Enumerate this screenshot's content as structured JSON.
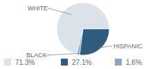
{
  "chart_data": {
    "type": "pie",
    "categories": [
      "WHITE",
      "HISPANIC",
      "BLACK"
    ],
    "values": [
      71.3,
      27.1,
      1.6
    ],
    "value_labels": [
      "71.3%",
      "27.1%",
      "1.6%"
    ],
    "colors": [
      "#dce2e9",
      "#2f5b7f",
      "#8ca8c0"
    ]
  }
}
